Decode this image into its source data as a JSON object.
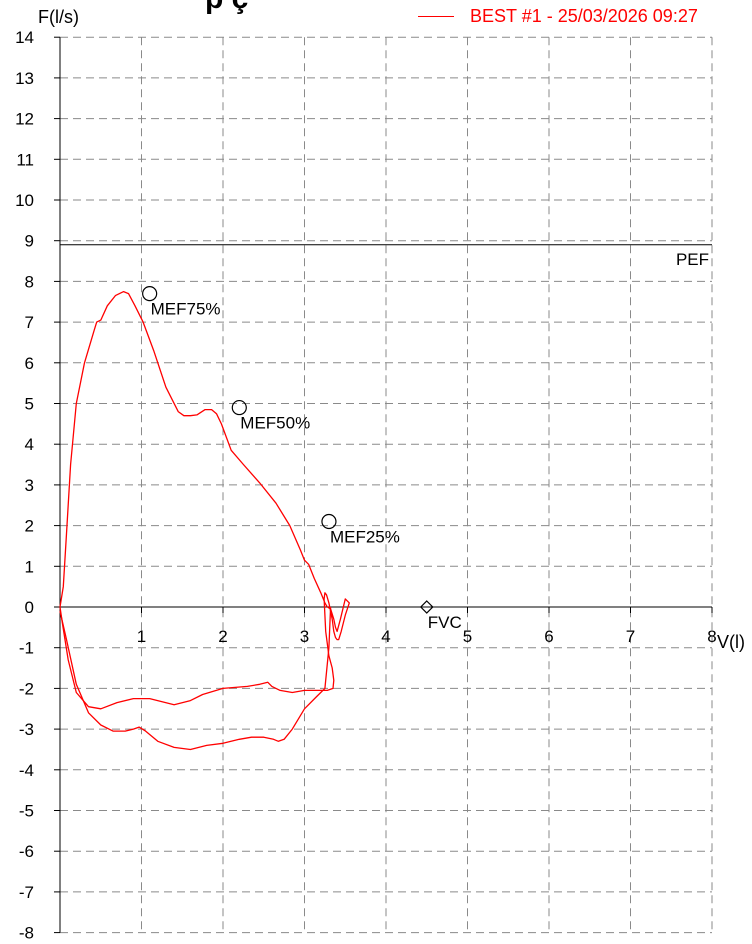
{
  "chart_data": {
    "type": "line",
    "title": "",
    "xlabel": "V(l)",
    "ylabel": "F(l/s)",
    "xlim": [
      0,
      8
    ],
    "ylim": [
      -8,
      14
    ],
    "x_ticks": [
      "1",
      "2",
      "3",
      "4",
      "5",
      "6",
      "7",
      "8"
    ],
    "y_ticks": [
      "14",
      "13",
      "12",
      "11",
      "10",
      "9",
      "8",
      "7",
      "6",
      "5",
      "4",
      "3",
      "2",
      "1",
      "0",
      "-1",
      "-2",
      "-3",
      "-4",
      "-5",
      "-6",
      "-7",
      "-8"
    ],
    "grid": true,
    "legend_position": "top-right",
    "pef": {
      "label": "PEF",
      "value": 8.9
    },
    "markers": [
      {
        "label": "MEF75%",
        "x": 1.1,
        "y": 7.7,
        "shape": "circle"
      },
      {
        "label": "MEF50%",
        "x": 2.2,
        "y": 4.9,
        "shape": "circle"
      },
      {
        "label": "MEF25%",
        "x": 3.3,
        "y": 2.1,
        "shape": "circle"
      },
      {
        "label": "FVC",
        "x": 4.5,
        "y": 0.0,
        "shape": "diamond"
      }
    ],
    "series": [
      {
        "name": "BEST #1 - 25/03/2026  09:27",
        "color": "#ff0000",
        "x": [
          0,
          0.04,
          0.08,
          0.13,
          0.2,
          0.3,
          0.42,
          0.45,
          0.5,
          0.58,
          0.68,
          0.78,
          0.84,
          0.92,
          1.02,
          1.15,
          1.3,
          1.45,
          1.52,
          1.6,
          1.68,
          1.78,
          1.86,
          1.92,
          1.98,
          2.1,
          2.25,
          2.45,
          2.65,
          2.82,
          2.95,
          3.0,
          3.05,
          3.12,
          3.2,
          3.25,
          3.28,
          3.32,
          3.36,
          3.38,
          3.4,
          3.44,
          3.5,
          3.55,
          3.5,
          3.45,
          3.42,
          3.4,
          3.38,
          3.36,
          3.34,
          3.3,
          3.27,
          3.25,
          3.24,
          3.26,
          3.3,
          3.34,
          3.36,
          3.35,
          3.28,
          3.15,
          3.0,
          2.85,
          2.7,
          2.6,
          2.55,
          2.45,
          2.3,
          2.0,
          1.75,
          1.6,
          1.4,
          1.1,
          0.9,
          0.7,
          0.5,
          0.35,
          0.2,
          0.1,
          0.03,
          0
        ],
        "y": [
          0,
          0.5,
          1.8,
          3.5,
          5.0,
          6.0,
          6.8,
          7.0,
          7.05,
          7.4,
          7.65,
          7.75,
          7.7,
          7.4,
          7.0,
          6.3,
          5.4,
          4.8,
          4.7,
          4.7,
          4.72,
          4.85,
          4.85,
          4.75,
          4.5,
          3.85,
          3.5,
          3.05,
          2.55,
          2.0,
          1.4,
          1.15,
          1.05,
          0.7,
          0.35,
          0.1,
          0.0,
          -0.05,
          -0.3,
          -0.5,
          -0.6,
          -0.3,
          0.2,
          0.1,
          -0.2,
          -0.6,
          -0.8,
          -0.8,
          -0.75,
          -0.6,
          -0.3,
          0.1,
          0.3,
          0.35,
          0.2,
          -0.6,
          -1.2,
          -1.5,
          -1.8,
          -2.0,
          -2.05,
          -2.05,
          -2.05,
          -2.1,
          -2.05,
          -1.95,
          -1.85,
          -1.9,
          -1.95,
          -2.0,
          -2.15,
          -2.3,
          -2.4,
          -2.25,
          -2.25,
          -2.35,
          -2.5,
          -2.45,
          -2.1,
          -1.3,
          -0.4,
          0
        ]
      },
      {
        "name": "",
        "color": "#ff0000",
        "x": [
          0,
          0.08,
          0.2,
          0.35,
          0.5,
          0.65,
          0.8,
          0.9,
          0.97,
          1.05,
          1.2,
          1.4,
          1.6,
          1.8,
          2.0,
          2.2,
          2.35,
          2.5,
          2.62,
          2.68,
          2.75,
          2.85,
          3.0,
          3.15,
          3.25,
          3.3,
          3.32
        ],
        "y": [
          -0.1,
          -0.8,
          -1.9,
          -2.6,
          -2.9,
          -3.05,
          -3.05,
          -3.0,
          -2.95,
          -3.05,
          -3.3,
          -3.45,
          -3.5,
          -3.4,
          -3.35,
          -3.25,
          -3.2,
          -3.2,
          -3.25,
          -3.3,
          -3.25,
          -3.0,
          -2.5,
          -2.2,
          -2.0,
          -1.0,
          0.0
        ]
      }
    ]
  }
}
